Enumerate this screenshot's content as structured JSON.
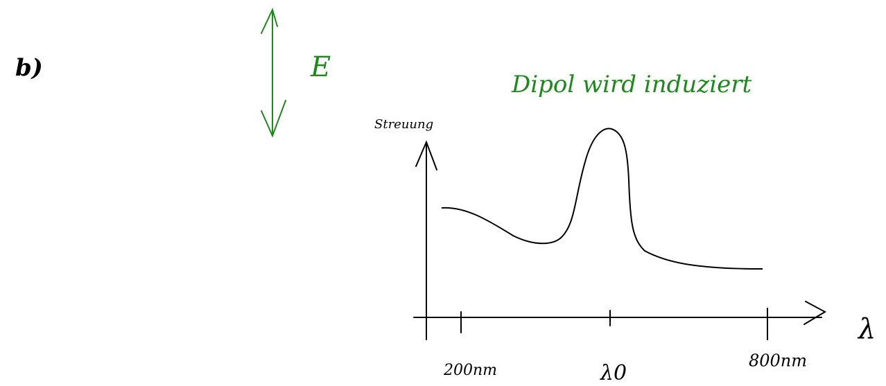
{
  "label": "b)",
  "field": {
    "label": "E"
  },
  "note": "Dipol wird induziert",
  "graph": {
    "y_label": "Streuung",
    "x_label": "λ",
    "x_ticks": [
      "200nm",
      "λ0",
      "800nm"
    ]
  }
}
